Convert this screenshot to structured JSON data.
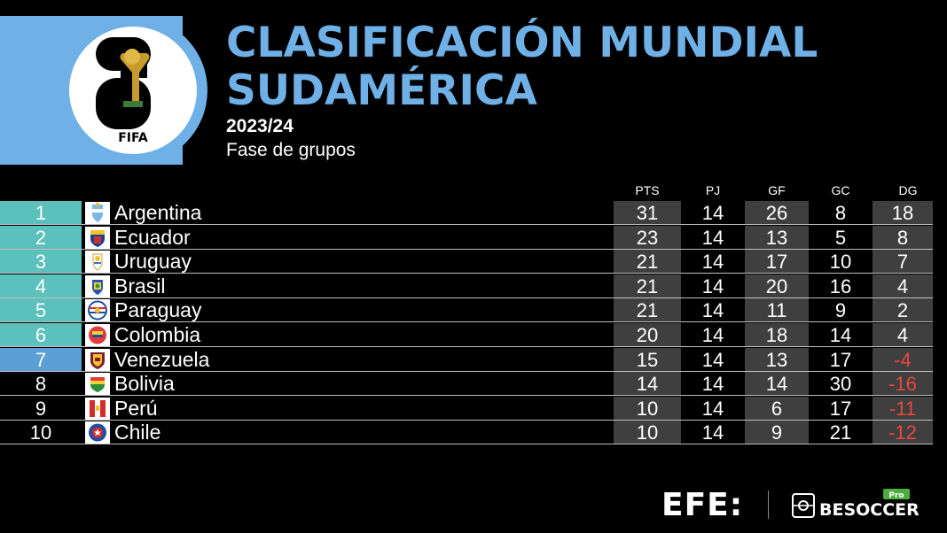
{
  "header": {
    "title_line1": "CLASIFICACIÓN MUNDIAL",
    "title_line2": "SUDAMÉRICA",
    "season": "2023/24",
    "phase": "Fase de grupos",
    "logo_text": "FIFA"
  },
  "columns": [
    "PTS",
    "PJ",
    "GF",
    "GC",
    "DG"
  ],
  "rows": [
    {
      "pos": "1",
      "team": "Argentina",
      "pts": "31",
      "pj": "14",
      "gf": "26",
      "gc": "8",
      "dg": "18"
    },
    {
      "pos": "2",
      "team": "Ecuador",
      "pts": "23",
      "pj": "14",
      "gf": "13",
      "gc": "5",
      "dg": "8"
    },
    {
      "pos": "3",
      "team": "Uruguay",
      "pts": "21",
      "pj": "14",
      "gf": "17",
      "gc": "10",
      "dg": "7"
    },
    {
      "pos": "4",
      "team": "Brasil",
      "pts": "21",
      "pj": "14",
      "gf": "20",
      "gc": "16",
      "dg": "4"
    },
    {
      "pos": "5",
      "team": "Paraguay",
      "pts": "21",
      "pj": "14",
      "gf": "11",
      "gc": "9",
      "dg": "2"
    },
    {
      "pos": "6",
      "team": "Colombia",
      "pts": "20",
      "pj": "14",
      "gf": "18",
      "gc": "14",
      "dg": "4"
    },
    {
      "pos": "7",
      "team": "Venezuela",
      "pts": "15",
      "pj": "14",
      "gf": "13",
      "gc": "17",
      "dg": "-4"
    },
    {
      "pos": "8",
      "team": "Bolivia",
      "pts": "14",
      "pj": "14",
      "gf": "14",
      "gc": "30",
      "dg": "-16"
    },
    {
      "pos": "9",
      "team": "Perú",
      "pts": "10",
      "pj": "14",
      "gf": "6",
      "gc": "17",
      "dg": "-11"
    },
    {
      "pos": "10",
      "team": "Chile",
      "pts": "10",
      "pj": "14",
      "gf": "9",
      "gc": "21",
      "dg": "-12"
    }
  ],
  "footer": {
    "efe": "EFE:",
    "besoccer": "BESOCCER",
    "pro_badge": "Pro"
  },
  "colors": {
    "accent_blue": "#6fb0e6",
    "direct_qualify": "#5cc0bc",
    "playoff": "#5b9fd6",
    "negative": "#e8483f",
    "cell_dark": "#3f3f3f"
  }
}
